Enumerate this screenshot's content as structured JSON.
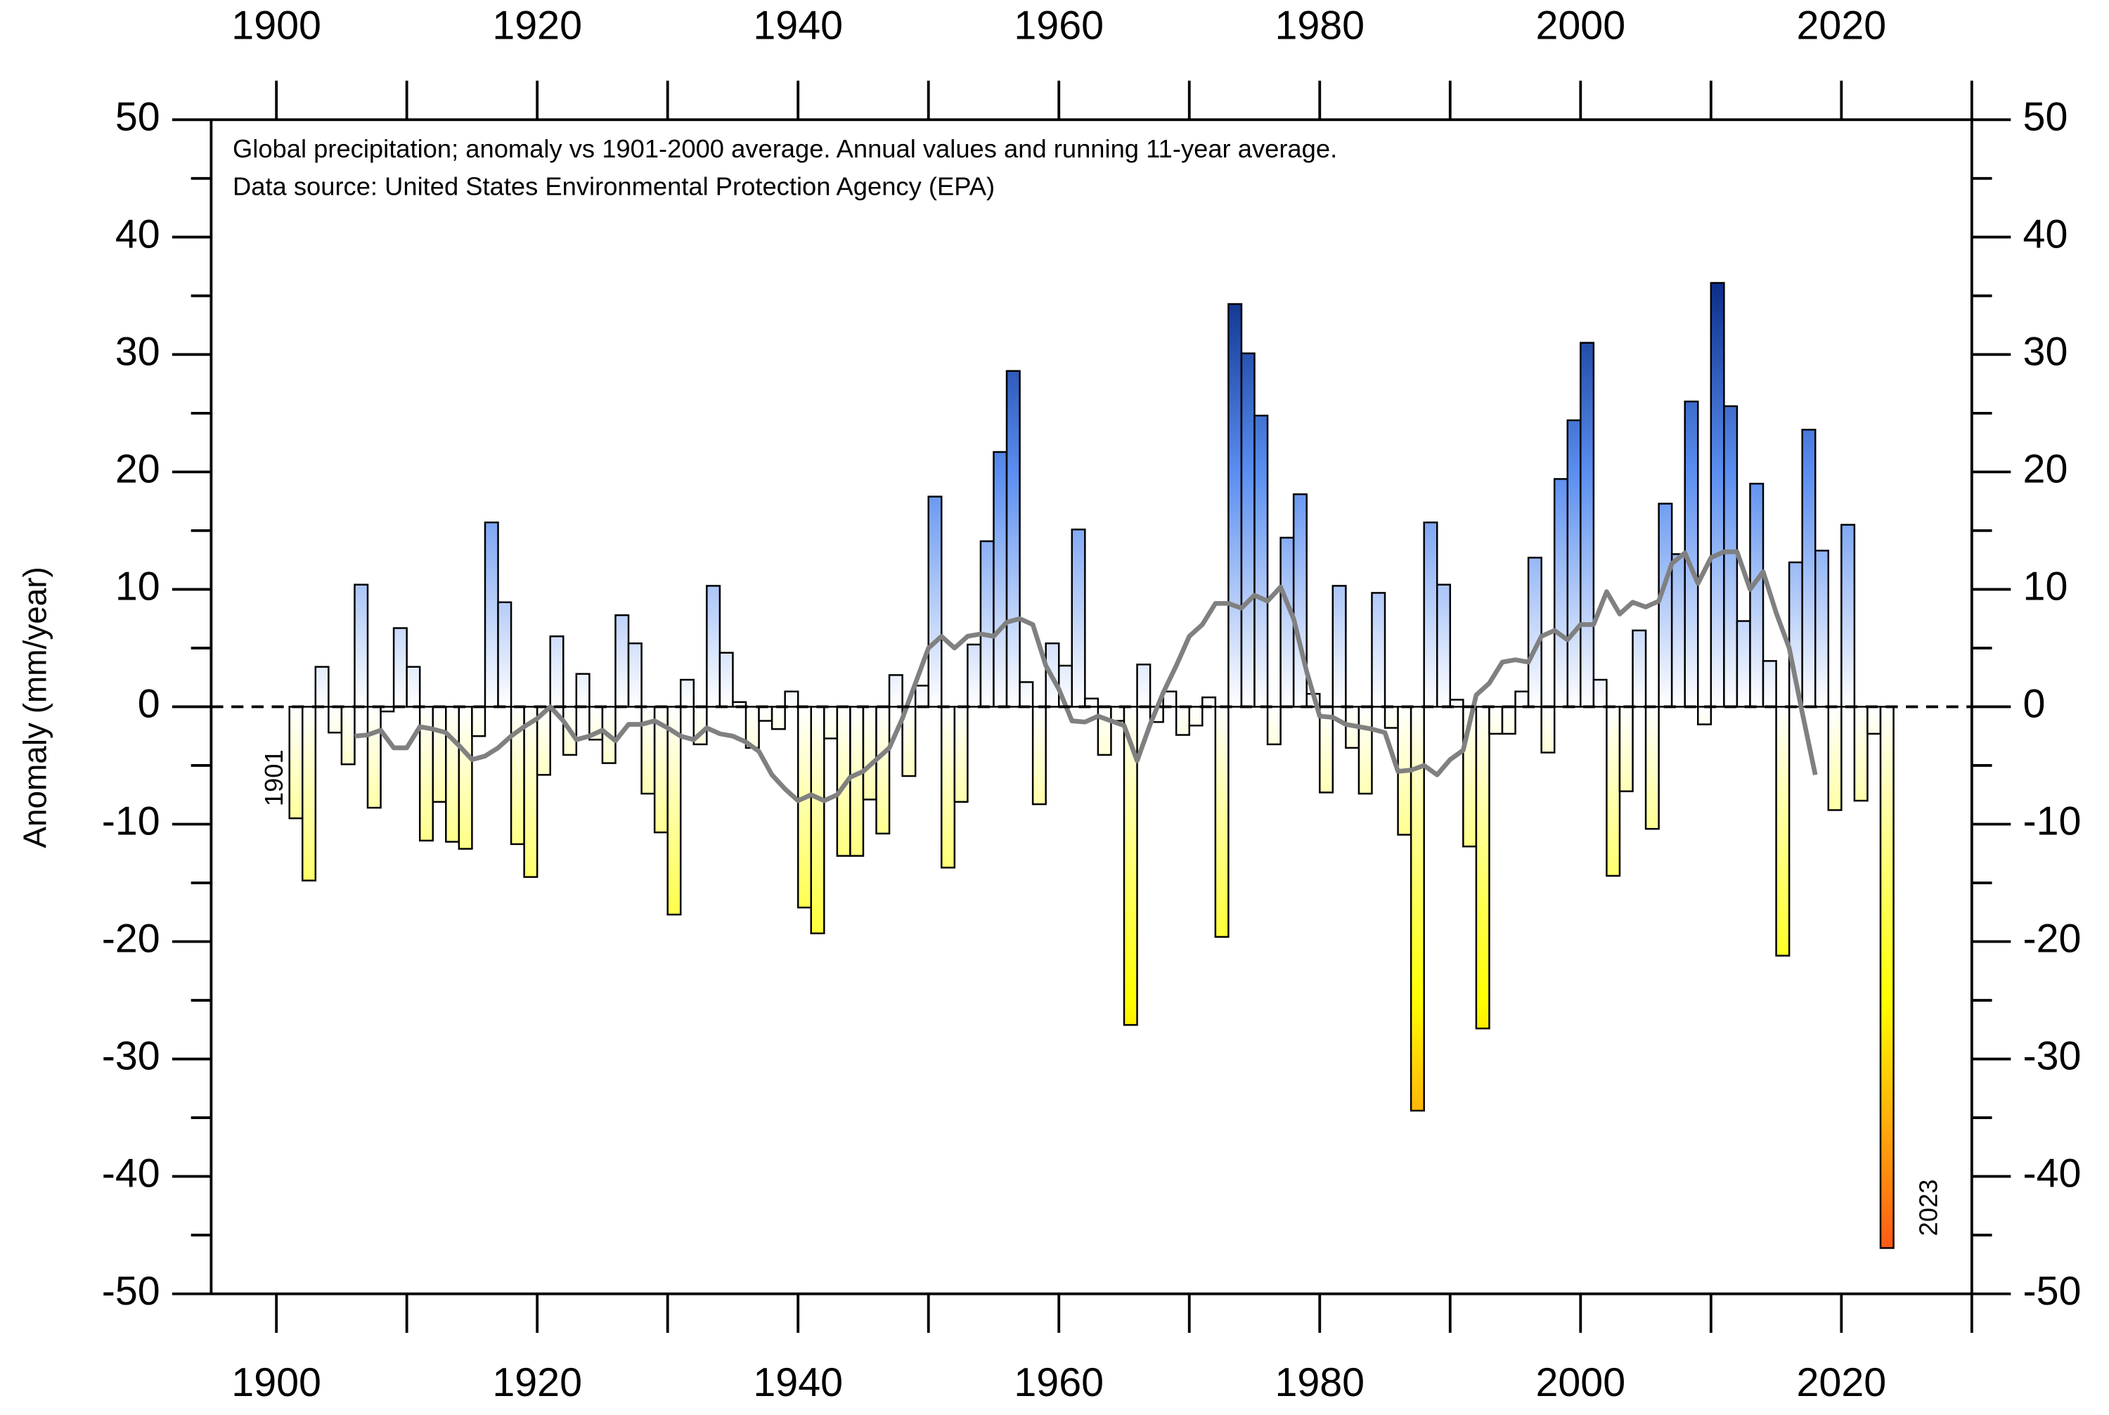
{
  "chart_data": {
    "type": "bar",
    "annotations": [
      "Global precipitation; anomaly vs 1901-2000 average. Annual values and running 11-year average.",
      "Data source: United States Environmental Protection Agency (EPA)"
    ],
    "ylabel": "Anomaly (mm/year)",
    "point_labels": [
      {
        "text": "1901",
        "x": 1901
      },
      {
        "text": "2023",
        "x": 2023
      }
    ],
    "xlim": [
      1895,
      2030
    ],
    "xticks": [
      1900,
      1920,
      1940,
      1960,
      1980,
      2000,
      2020
    ],
    "xminorticks": [
      1910,
      1930,
      1950,
      1970,
      1990,
      2010,
      2030
    ],
    "ylim": [
      -50,
      50
    ],
    "yticks": [
      -50,
      -40,
      -30,
      -20,
      -10,
      0,
      10,
      20,
      30,
      40,
      50
    ],
    "yminorticks": [
      -45,
      -35,
      -25,
      -15,
      -5,
      5,
      15,
      25,
      35,
      45
    ],
    "zero_line": true,
    "colormap": [
      {
        "value": 36,
        "color": "#0b2f8a"
      },
      {
        "value": 20,
        "color": "#5a8ef0"
      },
      {
        "value": 0,
        "color": "#ffffff"
      },
      {
        "value": -25,
        "color": "#ffff00"
      },
      {
        "value": -46,
        "color": "#ff5a14"
      }
    ],
    "series": [
      {
        "style": "bar",
        "x": [
          1901,
          1902,
          1903,
          1904,
          1905,
          1906,
          1907,
          1908,
          1909,
          1910,
          1911,
          1912,
          1913,
          1914,
          1915,
          1916,
          1917,
          1918,
          1919,
          1920,
          1921,
          1922,
          1923,
          1924,
          1925,
          1926,
          1927,
          1928,
          1929,
          1930,
          1931,
          1932,
          1933,
          1934,
          1935,
          1936,
          1937,
          1938,
          1939,
          1940,
          1941,
          1942,
          1943,
          1944,
          1945,
          1946,
          1947,
          1948,
          1949,
          1950,
          1951,
          1952,
          1953,
          1954,
          1955,
          1956,
          1957,
          1958,
          1959,
          1960,
          1961,
          1962,
          1963,
          1964,
          1965,
          1966,
          1967,
          1968,
          1969,
          1970,
          1971,
          1972,
          1973,
          1974,
          1975,
          1976,
          1977,
          1978,
          1979,
          1980,
          1981,
          1982,
          1983,
          1984,
          1985,
          1986,
          1987,
          1988,
          1989,
          1990,
          1991,
          1992,
          1993,
          1994,
          1995,
          1996,
          1997,
          1998,
          1999,
          2000,
          2001,
          2002,
          2003,
          2004,
          2005,
          2006,
          2007,
          2008,
          2009,
          2010,
          2011,
          2012,
          2013,
          2014,
          2015,
          2016,
          2017,
          2018,
          2019,
          2020,
          2021,
          2022,
          2023
        ],
        "values": [
          -9.5,
          -14.8,
          3.4,
          -2.2,
          -4.9,
          10.4,
          -8.6,
          -0.4,
          6.7,
          3.4,
          -11.4,
          -8.1,
          -11.5,
          -12.1,
          -2.5,
          15.7,
          8.9,
          -11.7,
          -14.5,
          -5.8,
          6.0,
          -4.1,
          2.8,
          -2.8,
          -4.8,
          7.8,
          5.4,
          -7.4,
          -10.7,
          -17.7,
          2.3,
          -3.2,
          10.3,
          4.6,
          0.4,
          -3.5,
          -1.2,
          -1.9,
          1.3,
          -17.1,
          -19.3,
          -2.7,
          -12.7,
          -12.7,
          -7.9,
          -10.8,
          2.7,
          -5.9,
          1.8,
          17.9,
          -13.7,
          -8.1,
          5.3,
          14.1,
          21.7,
          28.6,
          2.1,
          -8.3,
          5.4,
          3.5,
          15.1,
          0.7,
          -4.1,
          -1.2,
          -27.1,
          3.6,
          -1.3,
          1.3,
          -2.4,
          -1.6,
          0.8,
          -19.6,
          34.3,
          30.1,
          24.8,
          -3.2,
          14.4,
          18.1,
          1.1,
          -7.3,
          10.3,
          -3.5,
          -7.4,
          9.7,
          -1.8,
          -10.9,
          -34.4,
          15.7,
          10.4,
          0.6,
          -11.9,
          -27.4,
          -2.3,
          -2.3,
          1.3,
          12.7,
          -3.9,
          19.4,
          24.4,
          31.0,
          2.3,
          -14.4,
          -7.2,
          6.5,
          -10.4,
          17.3,
          13.0,
          26.0,
          -1.5,
          36.1,
          25.6,
          7.3,
          19.0,
          3.9,
          -21.2,
          12.3,
          23.6,
          13.3,
          -8.8,
          15.5,
          -8.0,
          -2.3,
          -46.1
        ]
      },
      {
        "style": "line",
        "color": "#808080",
        "x": [
          1906,
          1907,
          1908,
          1909,
          1910,
          1911,
          1912,
          1913,
          1914,
          1915,
          1916,
          1917,
          1918,
          1919,
          1920,
          1921,
          1922,
          1923,
          1924,
          1925,
          1926,
          1927,
          1928,
          1929,
          1930,
          1931,
          1932,
          1933,
          1934,
          1935,
          1936,
          1937,
          1938,
          1939,
          1940,
          1941,
          1942,
          1943,
          1944,
          1945,
          1946,
          1947,
          1948,
          1949,
          1950,
          1951,
          1952,
          1953,
          1954,
          1955,
          1956,
          1957,
          1958,
          1959,
          1960,
          1961,
          1962,
          1963,
          1964,
          1965,
          1966,
          1967,
          1968,
          1969,
          1970,
          1971,
          1972,
          1973,
          1974,
          1975,
          1976,
          1977,
          1978,
          1979,
          1980,
          1981,
          1982,
          1983,
          1984,
          1985,
          1986,
          1987,
          1988,
          1989,
          1990,
          1991,
          1992,
          1993,
          1994,
          1995,
          1996,
          1997,
          1998,
          1999,
          2000,
          2001,
          2002,
          2003,
          2004,
          2005,
          2006,
          2007,
          2008,
          2009,
          2010,
          2011,
          2012,
          2013,
          2014,
          2015,
          2016,
          2017,
          2018
        ],
        "values": [
          -2.5,
          -2.4,
          -2.0,
          -3.5,
          -3.5,
          -1.7,
          -1.9,
          -2.2,
          -3.3,
          -4.5,
          -4.2,
          -3.5,
          -2.5,
          -1.7,
          -1.0,
          0.0,
          -1.2,
          -2.8,
          -2.5,
          -2.0,
          -2.9,
          -1.5,
          -1.5,
          -1.2,
          -1.8,
          -2.5,
          -2.8,
          -1.8,
          -2.3,
          -2.5,
          -3.0,
          -3.8,
          -5.8,
          -7.0,
          -8.0,
          -7.5,
          -8.0,
          -7.5,
          -6.0,
          -5.5,
          -4.5,
          -3.5,
          -1.0,
          2.0,
          5.0,
          6.0,
          5.0,
          6.0,
          6.2,
          6.0,
          7.2,
          7.5,
          7.0,
          3.5,
          1.5,
          -1.2,
          -1.3,
          -0.8,
          -1.2,
          -1.6,
          -4.6,
          -1.5,
          1.2,
          3.5,
          6.0,
          7.0,
          8.8,
          8.8,
          8.4,
          9.5,
          9.0,
          10.2,
          7.5,
          3.0,
          -0.8,
          -0.9,
          -1.5,
          -1.7,
          -1.9,
          -2.2,
          -5.5,
          -5.4,
          -5.0,
          -5.8,
          -4.5,
          -3.7,
          1.0,
          2.0,
          3.8,
          4.0,
          3.8,
          6.0,
          6.5,
          5.7,
          7.0,
          7.0,
          9.8,
          7.9,
          8.9,
          8.5,
          9.0,
          12.2,
          13.1,
          10.5,
          12.7,
          13.2,
          13.2,
          10.0,
          11.5,
          8.0,
          5.0,
          -0.5,
          -5.8
        ]
      }
    ]
  }
}
